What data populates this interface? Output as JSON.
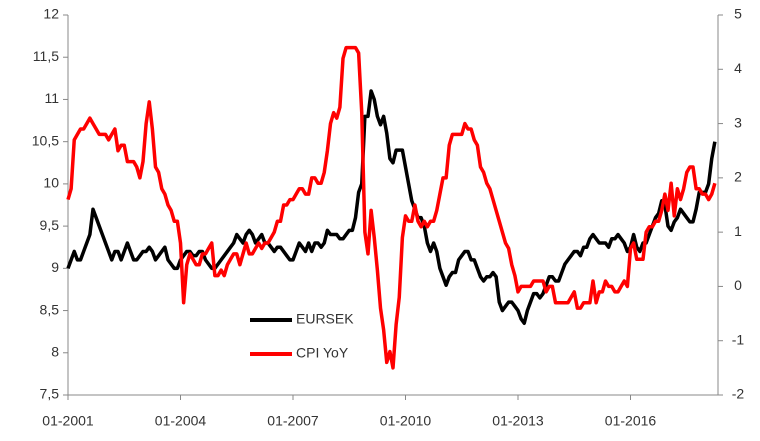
{
  "chart_data": {
    "type": "line",
    "x": [
      "01-2001",
      "02-2001",
      "03-2001",
      "04-2001",
      "05-2001",
      "06-2001",
      "07-2001",
      "08-2001",
      "09-2001",
      "10-2001",
      "11-2001",
      "12-2001",
      "01-2002",
      "02-2002",
      "03-2002",
      "04-2002",
      "05-2002",
      "06-2002",
      "07-2002",
      "08-2002",
      "09-2002",
      "10-2002",
      "11-2002",
      "12-2002",
      "01-2003",
      "02-2003",
      "03-2003",
      "04-2003",
      "05-2003",
      "06-2003",
      "07-2003",
      "08-2003",
      "09-2003",
      "10-2003",
      "11-2003",
      "12-2003",
      "01-2004",
      "02-2004",
      "03-2004",
      "04-2004",
      "05-2004",
      "06-2004",
      "07-2004",
      "08-2004",
      "09-2004",
      "10-2004",
      "11-2004",
      "12-2004",
      "01-2005",
      "02-2005",
      "03-2005",
      "04-2005",
      "05-2005",
      "06-2005",
      "07-2005",
      "08-2005",
      "09-2005",
      "10-2005",
      "11-2005",
      "12-2005",
      "01-2006",
      "02-2006",
      "03-2006",
      "04-2006",
      "05-2006",
      "06-2006",
      "07-2006",
      "08-2006",
      "09-2006",
      "10-2006",
      "11-2006",
      "12-2006",
      "01-2007",
      "02-2007",
      "03-2007",
      "04-2007",
      "05-2007",
      "06-2007",
      "07-2007",
      "08-2007",
      "09-2007",
      "10-2007",
      "11-2007",
      "12-2007",
      "01-2008",
      "02-2008",
      "03-2008",
      "04-2008",
      "05-2008",
      "06-2008",
      "07-2008",
      "08-2008",
      "09-2008",
      "10-2008",
      "11-2008",
      "12-2008",
      "01-2009",
      "02-2009",
      "03-2009",
      "04-2009",
      "05-2009",
      "06-2009",
      "07-2009",
      "08-2009",
      "09-2009",
      "10-2009",
      "11-2009",
      "12-2009",
      "01-2010",
      "02-2010",
      "03-2010",
      "04-2010",
      "05-2010",
      "06-2010",
      "07-2010",
      "08-2010",
      "09-2010",
      "10-2010",
      "11-2010",
      "12-2010",
      "01-2011",
      "02-2011",
      "03-2011",
      "04-2011",
      "05-2011",
      "06-2011",
      "07-2011",
      "08-2011",
      "09-2011",
      "10-2011",
      "11-2011",
      "12-2011",
      "01-2012",
      "02-2012",
      "03-2012",
      "04-2012",
      "05-2012",
      "06-2012",
      "07-2012",
      "08-2012",
      "09-2012",
      "10-2012",
      "11-2012",
      "12-2012",
      "01-2013",
      "02-2013",
      "03-2013",
      "04-2013",
      "05-2013",
      "06-2013",
      "07-2013",
      "08-2013",
      "09-2013",
      "10-2013",
      "11-2013",
      "12-2013",
      "01-2014",
      "02-2014",
      "03-2014",
      "04-2014",
      "05-2014",
      "06-2014",
      "07-2014",
      "08-2014",
      "09-2014",
      "10-2014",
      "11-2014",
      "12-2014",
      "01-2015",
      "02-2015",
      "03-2015",
      "04-2015",
      "05-2015",
      "06-2015",
      "07-2015",
      "08-2015",
      "09-2015",
      "10-2015",
      "11-2015",
      "12-2015",
      "01-2016",
      "02-2016",
      "03-2016",
      "04-2016",
      "05-2016",
      "06-2016",
      "07-2016",
      "08-2016",
      "09-2016",
      "10-2016",
      "11-2016",
      "12-2016",
      "01-2017",
      "02-2017",
      "03-2017",
      "04-2017",
      "05-2017",
      "06-2017",
      "07-2017",
      "08-2017",
      "09-2017",
      "10-2017",
      "11-2017",
      "12-2017",
      "01-2018",
      "02-2018",
      "03-2018",
      "04-2018"
    ],
    "series": [
      {
        "name": "EURSEK",
        "color": "#000000",
        "values": [
          9.0,
          9.1,
          9.2,
          9.1,
          9.1,
          9.2,
          9.3,
          9.4,
          9.7,
          9.6,
          9.5,
          9.4,
          9.3,
          9.2,
          9.1,
          9.2,
          9.2,
          9.1,
          9.2,
          9.3,
          9.2,
          9.1,
          9.1,
          9.15,
          9.2,
          9.2,
          9.25,
          9.2,
          9.1,
          9.15,
          9.2,
          9.25,
          9.1,
          9.05,
          9.0,
          9.0,
          9.1,
          9.15,
          9.2,
          9.2,
          9.15,
          9.15,
          9.2,
          9.2,
          9.1,
          9.05,
          9.0,
          9.0,
          9.05,
          9.1,
          9.15,
          9.2,
          9.25,
          9.3,
          9.4,
          9.35,
          9.3,
          9.4,
          9.45,
          9.4,
          9.3,
          9.35,
          9.4,
          9.3,
          9.3,
          9.25,
          9.2,
          9.25,
          9.25,
          9.2,
          9.15,
          9.1,
          9.1,
          9.2,
          9.3,
          9.25,
          9.2,
          9.3,
          9.2,
          9.3,
          9.3,
          9.25,
          9.3,
          9.45,
          9.4,
          9.4,
          9.4,
          9.35,
          9.35,
          9.4,
          9.45,
          9.45,
          9.6,
          9.9,
          10.0,
          10.8,
          10.8,
          11.1,
          11.0,
          10.8,
          10.7,
          10.8,
          10.6,
          10.3,
          10.25,
          10.4,
          10.4,
          10.4,
          10.2,
          10.0,
          9.8,
          9.7,
          9.6,
          9.6,
          9.5,
          9.3,
          9.2,
          9.3,
          9.2,
          9.0,
          8.9,
          8.8,
          8.9,
          8.95,
          8.95,
          9.1,
          9.15,
          9.2,
          9.2,
          9.1,
          9.1,
          9.0,
          8.9,
          8.85,
          8.9,
          8.9,
          8.95,
          8.9,
          8.6,
          8.5,
          8.55,
          8.6,
          8.6,
          8.55,
          8.5,
          8.4,
          8.35,
          8.5,
          8.6,
          8.7,
          8.7,
          8.65,
          8.7,
          8.8,
          8.9,
          8.9,
          8.85,
          8.85,
          8.95,
          9.05,
          9.1,
          9.15,
          9.2,
          9.2,
          9.15,
          9.25,
          9.25,
          9.35,
          9.4,
          9.35,
          9.3,
          9.3,
          9.3,
          9.25,
          9.35,
          9.35,
          9.4,
          9.35,
          9.3,
          9.2,
          9.25,
          9.4,
          9.25,
          9.2,
          9.3,
          9.3,
          9.4,
          9.5,
          9.6,
          9.65,
          9.8,
          9.75,
          9.5,
          9.45,
          9.55,
          9.6,
          9.7,
          9.65,
          9.6,
          9.55,
          9.55,
          9.7,
          9.9,
          9.9,
          9.9,
          10.0,
          10.3,
          10.5
        ]
      },
      {
        "name": "CPI YoY",
        "color": "#ff0000",
        "axis": "y2",
        "values": [
          1.6,
          1.8,
          2.7,
          2.8,
          2.9,
          2.9,
          3.0,
          3.1,
          3.0,
          2.9,
          2.8,
          2.8,
          2.8,
          2.7,
          2.8,
          2.9,
          2.5,
          2.6,
          2.6,
          2.3,
          2.3,
          2.3,
          2.2,
          2.0,
          2.3,
          3.0,
          3.4,
          2.9,
          2.2,
          2.1,
          1.8,
          1.7,
          1.5,
          1.4,
          1.2,
          1.2,
          0.8,
          -0.3,
          0.4,
          0.6,
          0.5,
          0.4,
          0.4,
          0.6,
          0.6,
          0.7,
          0.8,
          0.2,
          0.2,
          0.3,
          0.2,
          0.4,
          0.5,
          0.6,
          0.6,
          0.4,
          0.6,
          0.8,
          0.6,
          0.6,
          0.7,
          0.8,
          0.7,
          0.8,
          0.8,
          0.9,
          1.0,
          1.2,
          1.2,
          1.5,
          1.5,
          1.6,
          1.6,
          1.7,
          1.8,
          1.8,
          1.7,
          1.7,
          2.0,
          2.0,
          1.9,
          1.9,
          2.1,
          2.5,
          3.0,
          3.2,
          3.1,
          3.3,
          4.2,
          4.4,
          4.4,
          4.4,
          4.4,
          4.3,
          3.2,
          1.0,
          0.6,
          1.4,
          0.9,
          0.3,
          -0.4,
          -0.8,
          -1.4,
          -1.2,
          -1.5,
          -0.7,
          -0.2,
          0.9,
          1.3,
          1.2,
          1.2,
          1.5,
          1.2,
          1.1,
          1.2,
          1.1,
          1.2,
          1.2,
          1.4,
          1.7,
          2.0,
          2.0,
          2.6,
          2.8,
          2.8,
          2.8,
          2.8,
          3.0,
          2.9,
          2.9,
          2.7,
          2.6,
          2.2,
          2.1,
          1.9,
          1.8,
          1.6,
          1.4,
          1.2,
          1.0,
          0.8,
          0.7,
          0.4,
          0.2,
          -0.1,
          0.0,
          0.0,
          0.0,
          0.0,
          0.1,
          0.1,
          0.1,
          0.1,
          -0.1,
          0.0,
          0.0,
          -0.3,
          -0.3,
          -0.3,
          -0.3,
          -0.3,
          -0.2,
          -0.1,
          -0.4,
          -0.4,
          -0.3,
          -0.3,
          -0.3,
          0.1,
          -0.3,
          -0.1,
          -0.1,
          0.1,
          0.0,
          0.0,
          -0.1,
          -0.1,
          0.0,
          0.1,
          0.0,
          0.7,
          0.8,
          0.5,
          0.5,
          0.5,
          1.0,
          1.1,
          1.1,
          1.2,
          1.2,
          1.4,
          1.7,
          1.4,
          1.9,
          1.3,
          1.8,
          1.6,
          1.8,
          2.1,
          2.2,
          2.2,
          1.8,
          1.8,
          1.7,
          1.7,
          1.6,
          1.7,
          1.9
        ]
      }
    ],
    "xticks": [
      "01-2001",
      "01-2004",
      "01-2007",
      "01-2010",
      "01-2013",
      "01-2016"
    ],
    "ylim": [
      7.5,
      12
    ],
    "yticks": [
      {
        "value": 7.5,
        "label": "7,5"
      },
      8,
      {
        "value": 8.5,
        "label": "8,5"
      },
      9,
      {
        "value": 9.5,
        "label": "9,5"
      },
      10,
      {
        "value": 10.5,
        "label": "10,5"
      },
      11,
      {
        "value": 11.5,
        "label": "11,5"
      },
      12
    ],
    "y2lim": [
      -2,
      5
    ],
    "y2ticks": [
      -2,
      -1,
      0,
      1,
      2,
      3,
      4,
      5
    ]
  }
}
